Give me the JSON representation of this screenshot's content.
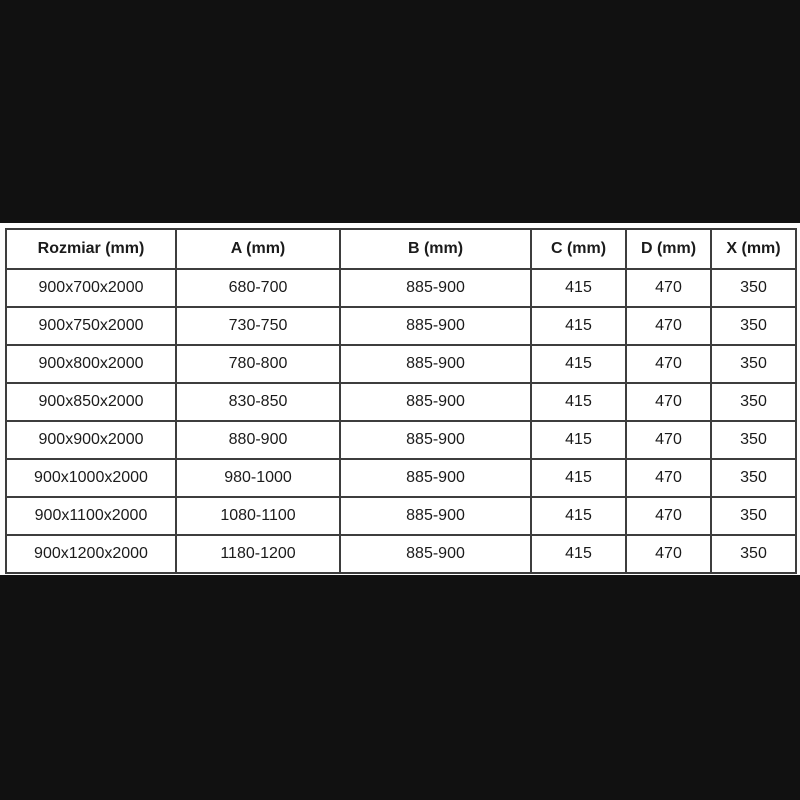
{
  "chart_data": {
    "type": "table",
    "columns": [
      "Rozmiar (mm)",
      "A (mm)",
      "B (mm)",
      "C (mm)",
      "D (mm)",
      "X (mm)"
    ],
    "rows": [
      [
        "900x700x2000",
        "680-700",
        "885-900",
        "415",
        "470",
        "350"
      ],
      [
        "900x750x2000",
        "730-750",
        "885-900",
        "415",
        "470",
        "350"
      ],
      [
        "900x800x2000",
        "780-800",
        "885-900",
        "415",
        "470",
        "350"
      ],
      [
        "900x850x2000",
        "830-850",
        "885-900",
        "415",
        "470",
        "350"
      ],
      [
        "900x900x2000",
        "880-900",
        "885-900",
        "415",
        "470",
        "350"
      ],
      [
        "900x1000x2000",
        "980-1000",
        "885-900",
        "415",
        "470",
        "350"
      ],
      [
        "900x1100x2000",
        "1080-1100",
        "885-900",
        "415",
        "470",
        "350"
      ],
      [
        "900x1200x2000",
        "1180-1200",
        "885-900",
        "415",
        "470",
        "350"
      ]
    ],
    "layout": {
      "grid": true,
      "header_bold": true
    }
  },
  "colors": {
    "page_background": "#111111",
    "panel_background": "#fdfdfd",
    "table_border": "#3d3d3d",
    "text": "#1b1b1b"
  }
}
